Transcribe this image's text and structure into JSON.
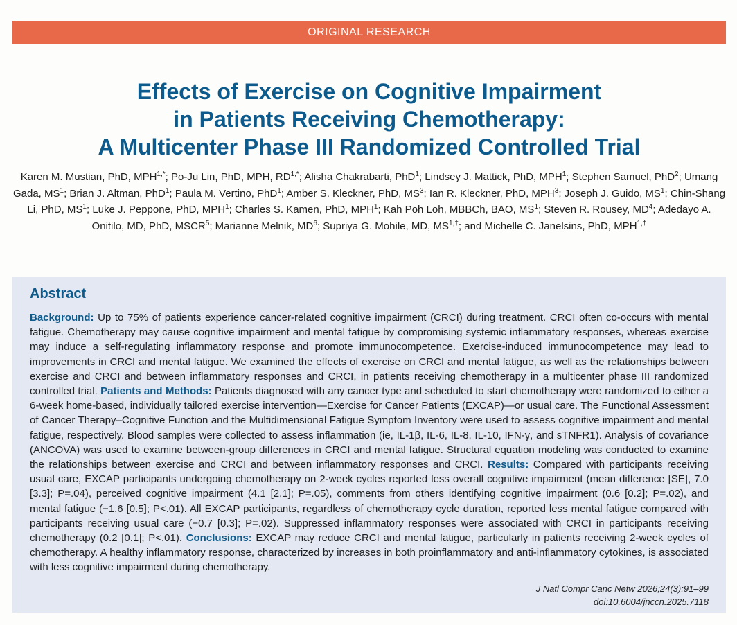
{
  "banner": {
    "label": "ORIGINAL RESEARCH"
  },
  "title": {
    "line1": "Effects of Exercise on Cognitive Impairment",
    "line2": "in Patients Receiving Chemotherapy:",
    "line3": "A Multicenter Phase III Randomized Controlled Trial"
  },
  "authors": [
    {
      "name": "Karen M. Mustian, PhD, MPH",
      "sup": "1,*"
    },
    {
      "name": "Po-Ju Lin, PhD, MPH, RD",
      "sup": "1,*"
    },
    {
      "name": "Alisha Chakrabarti, PhD",
      "sup": "1"
    },
    {
      "name": "Lindsey J. Mattick, PhD, MPH",
      "sup": "1"
    },
    {
      "name": "Stephen Samuel, PhD",
      "sup": "2"
    },
    {
      "name": "Umang Gada, MS",
      "sup": "1"
    },
    {
      "name": "Brian J. Altman, PhD",
      "sup": "1"
    },
    {
      "name": "Paula M. Vertino, PhD",
      "sup": "1"
    },
    {
      "name": "Amber S. Kleckner, PhD, MS",
      "sup": "3"
    },
    {
      "name": "Ian R. Kleckner, PhD, MPH",
      "sup": "3"
    },
    {
      "name": "Joseph J. Guido, MS",
      "sup": "1"
    },
    {
      "name": "Chin-Shang Li, PhD, MS",
      "sup": "1"
    },
    {
      "name": "Luke J. Peppone, PhD, MPH",
      "sup": "1"
    },
    {
      "name": "Charles S. Kamen, PhD, MPH",
      "sup": "1"
    },
    {
      "name": "Kah Poh Loh, MBBCh, BAO, MS",
      "sup": "1"
    },
    {
      "name": "Steven R. Rousey, MD",
      "sup": "4"
    },
    {
      "name": "Adedayo A. Onitilo, MD, PhD, MSCR",
      "sup": "5"
    },
    {
      "name": "Marianne Melnik, MD",
      "sup": "6"
    },
    {
      "name": "Supriya G. Mohile, MD, MS",
      "sup": "1,†"
    },
    {
      "name": "Michelle C. Janelsins, PhD, MPH",
      "sup": "1,†"
    }
  ],
  "authors_last_joiner": "and ",
  "abstract": {
    "heading": "Abstract",
    "background_label": "Background:",
    "background_text": " Up to 75% of patients experience cancer-related cognitive impairment (CRCI) during treatment. CRCI often co-occurs with mental fatigue. Chemotherapy may cause cognitive impairment and mental fatigue by compromising systemic inflammatory responses, whereas exercise may induce a self-regulating inflammatory response and promote immunocompetence. Exercise-induced immunocompetence may lead to improvements in CRCI and mental fatigue. We examined the effects of exercise on CRCI and mental fatigue, as well as the relationships between exercise and CRCI and between inflammatory responses and CRCI, in patients receiving chemotherapy in a multicenter phase III randomized controlled trial. ",
    "methods_label": "Patients and Methods:",
    "methods_text": " Patients diagnosed with any cancer type and scheduled to start chemotherapy were randomized to either a 6-week home-based, individually tailored exercise intervention—Exercise for Cancer Patients (EXCAP)—or usual care. The Functional Assessment of Cancer Therapy–Cognitive Function and the Multidimensional Fatigue Symptom Inventory were used to assess cognitive impairment and mental fatigue, respectively. Blood samples were collected to assess inflammation (ie, IL-1β, IL-6, IL-8, IL-10, IFN-γ, and sTNFR1). Analysis of covariance (ANCOVA) was used to examine between-group differences in CRCI and mental fatigue. Structural equation modeling was conducted to examine the relationships between exercise and CRCI and between inflammatory responses and CRCI. ",
    "results_label": "Results:",
    "results_text": " Compared with participants receiving usual care, EXCAP participants undergoing chemotherapy on 2-week cycles reported less overall cognitive impairment (mean difference [SE], 7.0 [3.3]; P=.04), perceived cognitive impairment (4.1 [2.1]; P=.05), comments from others identifying cognitive impairment (0.6 [0.2]; P=.02), and mental fatigue (−1.6 [0.5]; P<.01). All EXCAP participants, regardless of chemotherapy cycle duration, reported less mental fatigue compared with participants receiving usual care (−0.7 [0.3]; P=.02). Suppressed inflammatory responses were associated with CRCI in participants receiving chemotherapy (0.2 [0.1]; P<.01). ",
    "conclusions_label": "Conclusions:",
    "conclusions_text": " EXCAP may reduce CRCI and mental fatigue, particularly in patients receiving 2-week cycles of chemotherapy. A healthy inflammatory response, characterized by increases in both proinflammatory and anti-inflammatory cytokines, is associated with less cognitive impairment during chemotherapy."
  },
  "citation": {
    "journal": "J Natl Compr Canc Netw 2026;24(3):91–99",
    "doi": "doi:10.6004/jnccn.2025.7118"
  },
  "colors": {
    "banner": "#e8694a",
    "title": "#0d5a8c",
    "abstract_bg": "#e3e8f2"
  }
}
